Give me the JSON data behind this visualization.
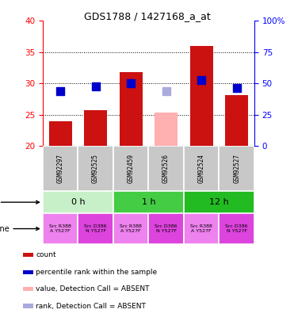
{
  "title": "GDS1788 / 1427168_a_at",
  "samples": [
    "GSM92297",
    "GSM92525",
    "GSM92459",
    "GSM92526",
    "GSM92524",
    "GSM92527"
  ],
  "bar_values": [
    24.0,
    25.7,
    31.8,
    null,
    36.0,
    28.2
  ],
  "bar_absent": [
    null,
    null,
    null,
    25.3,
    null,
    null
  ],
  "rank_values": [
    28.8,
    29.5,
    30.0,
    null,
    30.5,
    29.3
  ],
  "rank_absent": [
    null,
    null,
    null,
    28.8,
    null,
    null
  ],
  "ylim_left": [
    20,
    40
  ],
  "ylim_right": [
    0,
    100
  ],
  "yticks_left": [
    20,
    25,
    30,
    35,
    40
  ],
  "yticks_right": [
    0,
    25,
    50,
    75,
    100
  ],
  "yticklabels_right": [
    "0",
    "25",
    "50",
    "75",
    "100%"
  ],
  "bar_color": "#cc1111",
  "bar_absent_color": "#ffb0b0",
  "rank_color": "#0000cc",
  "rank_absent_color": "#aaaadd",
  "bar_width": 0.65,
  "rank_marker_size": 60,
  "sample_box_color": "#c8c8c8",
  "time_colors": [
    "#c8f0c8",
    "#44cc44",
    "#22bb22"
  ],
  "cell_colors_odd": "#ee82ee",
  "cell_colors_even": "#dd44dd",
  "cell_texts": [
    "Src R388\nA Y527F",
    "Src D386\nN Y527F",
    "Src R388\nA Y527F",
    "Src D386\nN Y527F",
    "Src R388\nA Y527F",
    "Src D386\nN Y527F"
  ],
  "time_labels": [
    "0 h",
    "1 h",
    "12 h"
  ],
  "legend_colors": [
    "#cc1111",
    "#0000cc",
    "#ffb0b0",
    "#aaaadd"
  ],
  "legend_labels": [
    "count",
    "percentile rank within the sample",
    "value, Detection Call = ABSENT",
    "rank, Detection Call = ABSENT"
  ]
}
